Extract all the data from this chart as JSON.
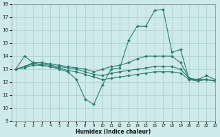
{
  "xlabel": "Humidex (Indice chaleur)",
  "x": [
    0,
    1,
    2,
    3,
    4,
    5,
    6,
    7,
    8,
    9,
    10,
    11,
    12,
    13,
    14,
    15,
    16,
    17,
    18,
    19,
    20,
    21,
    22,
    23
  ],
  "series": [
    [
      13.0,
      14.0,
      13.5,
      13.3,
      13.2,
      13.0,
      12.8,
      12.2,
      10.7,
      10.3,
      11.8,
      13.0,
      13.1,
      15.2,
      16.3,
      16.3,
      17.5,
      17.6,
      14.3,
      14.5,
      12.2,
      12.2,
      12.5,
      12.2
    ],
    [
      13.0,
      13.2,
      13.5,
      13.5,
      13.4,
      13.3,
      13.2,
      13.1,
      13.0,
      12.8,
      13.0,
      13.2,
      13.3,
      13.5,
      13.8,
      14.0,
      14.0,
      14.0,
      14.0,
      13.5,
      12.3,
      12.2,
      12.2,
      12.1
    ],
    [
      13.0,
      13.2,
      13.4,
      13.4,
      13.3,
      13.2,
      13.1,
      13.0,
      12.8,
      12.6,
      12.5,
      12.7,
      12.8,
      12.9,
      13.0,
      13.1,
      13.2,
      13.2,
      13.2,
      13.0,
      12.3,
      12.2,
      12.2,
      12.1
    ],
    [
      13.0,
      13.1,
      13.3,
      13.3,
      13.2,
      13.1,
      12.9,
      12.8,
      12.6,
      12.4,
      12.2,
      12.3,
      12.4,
      12.5,
      12.6,
      12.7,
      12.8,
      12.8,
      12.8,
      12.7,
      12.2,
      12.1,
      12.2,
      12.1
    ]
  ],
  "line_color": "#2a7a6f",
  "bg_color": "#ceeaea",
  "grid_color": "#aacece",
  "ylim": [
    9,
    18
  ],
  "xlim": [
    -0.5,
    23
  ],
  "yticks": [
    9,
    10,
    11,
    12,
    13,
    14,
    15,
    16,
    17,
    18
  ],
  "xticks": [
    0,
    1,
    2,
    3,
    4,
    5,
    6,
    7,
    8,
    9,
    10,
    11,
    12,
    13,
    14,
    15,
    16,
    17,
    18,
    19,
    20,
    21,
    22,
    23
  ]
}
